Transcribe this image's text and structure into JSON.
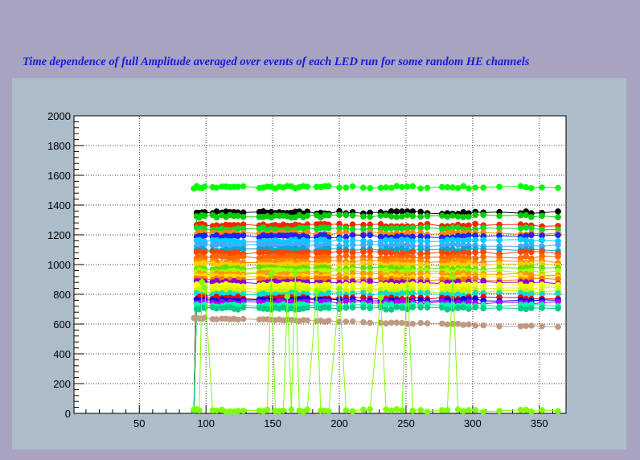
{
  "chart_data": {
    "type": "scatter",
    "title": "Time dependence of full Amplitude averaged over events of each LED run for some random HE channels",
    "xlabel": "",
    "ylabel": "",
    "xlim": [
      1,
      370
    ],
    "ylim": [
      0,
      2000
    ],
    "x_ticks": [
      50,
      100,
      150,
      200,
      250,
      300,
      350
    ],
    "y_ticks": [
      0,
      200,
      400,
      600,
      800,
      1000,
      1200,
      1400,
      1600,
      1800,
      2000
    ],
    "grid": true,
    "legend": "none",
    "run_x": [
      91,
      93,
      95,
      97,
      99,
      105,
      108,
      112,
      115,
      118,
      121,
      124,
      128,
      140,
      143,
      146,
      149,
      152,
      155,
      158,
      161,
      164,
      167,
      170,
      173,
      176,
      183,
      186,
      189,
      192,
      200,
      205,
      210,
      218,
      223,
      231,
      235,
      239,
      243,
      247,
      251,
      255,
      261,
      266,
      277,
      281,
      285,
      289,
      293,
      297,
      302,
      308,
      320,
      336,
      340,
      344,
      352,
      364
    ],
    "series": [
      {
        "color": "#00ff00",
        "level": 1520
      },
      {
        "color": "#000000",
        "level": 1350
      },
      {
        "color": "#00cc00",
        "level": 1325
      },
      {
        "color": "#ff2200",
        "level": 1265
      },
      {
        "color": "#00dd22",
        "level": 1240
      },
      {
        "color": "#ff8800",
        "level": 1210
      },
      {
        "color": "#2222ff",
        "level": 1190
      },
      {
        "color": "#00ccff",
        "level": 1160
      },
      {
        "color": "#44aaff",
        "level": 1130
      },
      {
        "color": "#00aacc",
        "level": 1100
      },
      {
        "color": "#ff4400",
        "level": 1080
      },
      {
        "color": "#ff6600",
        "level": 1050
      },
      {
        "color": "#ff8800",
        "level": 1020
      },
      {
        "color": "#ffcc00",
        "level": 1000
      },
      {
        "color": "#66dd00",
        "level": 975
      },
      {
        "color": "#aaff00",
        "level": 955
      },
      {
        "color": "#ff9900",
        "level": 935
      },
      {
        "color": "#ffdd00",
        "level": 915
      },
      {
        "color": "#ff7700",
        "level": 900
      },
      {
        "color": "#8800cc",
        "level": 880
      },
      {
        "color": "#ffff00",
        "level": 860
      },
      {
        "color": "#ddff00",
        "level": 840
      },
      {
        "color": "#ccee00",
        "level": 820
      },
      {
        "color": "#00ddcc",
        "level": 800
      },
      {
        "color": "#ff0000",
        "level": 775
      },
      {
        "color": "#0000ff",
        "level": 760
      },
      {
        "color": "#aa00ff",
        "level": 745
      },
      {
        "color": "#00ffaa",
        "level": 725
      },
      {
        "color": "#00cc88",
        "level": 705
      },
      {
        "color": "#c09a80",
        "level": 610
      },
      {
        "color": "#7fff00",
        "level": 20,
        "note": "jumps between ~20 and upper levels"
      }
    ]
  }
}
